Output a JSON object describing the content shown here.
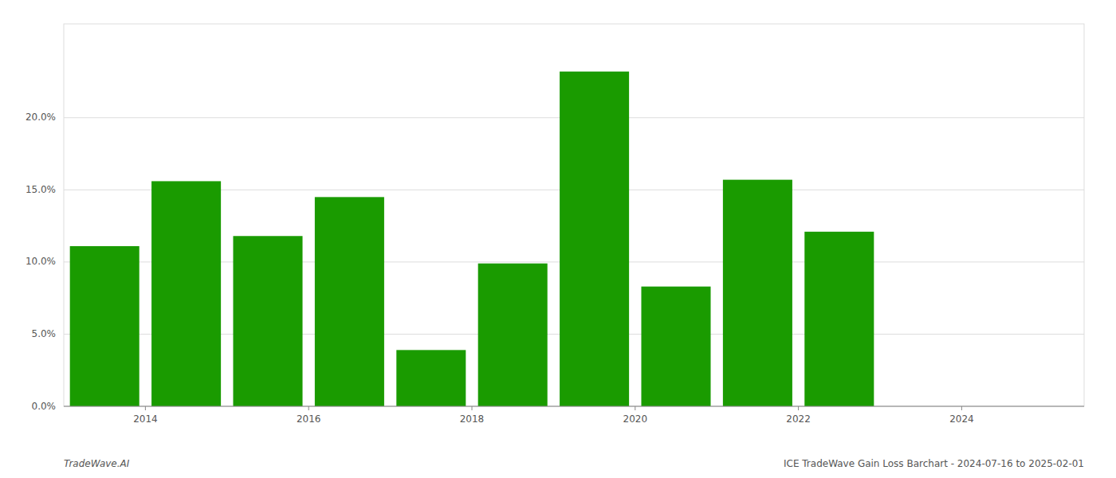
{
  "chart_data": {
    "type": "bar",
    "x": [
      2013.5,
      2014.5,
      2015.5,
      2016.5,
      2017.5,
      2018.5,
      2019.5,
      2020.5,
      2021.5,
      2022.5
    ],
    "values": [
      0.111,
      0.156,
      0.118,
      0.145,
      0.039,
      0.099,
      0.232,
      0.083,
      0.157,
      0.121
    ],
    "color": "#1a9b00",
    "xlim": [
      2013.0,
      2025.5
    ],
    "xticks": [
      2014,
      2016,
      2018,
      2020,
      2022,
      2024
    ],
    "ylim": [
      0,
      0.265
    ],
    "yticks": [
      {
        "value": 0.0,
        "label": "0.0%"
      },
      {
        "value": 0.05,
        "label": "5.0%"
      },
      {
        "value": 0.1,
        "label": "10.0%"
      },
      {
        "value": 0.15,
        "label": "15.0%"
      },
      {
        "value": 0.2,
        "label": "20.0%"
      }
    ],
    "grid": true,
    "annotations": [
      "TradeWave.AI",
      "ICE TradeWave Gain Loss Barchart - 2024-07-16 to 2025-02-01"
    ]
  }
}
